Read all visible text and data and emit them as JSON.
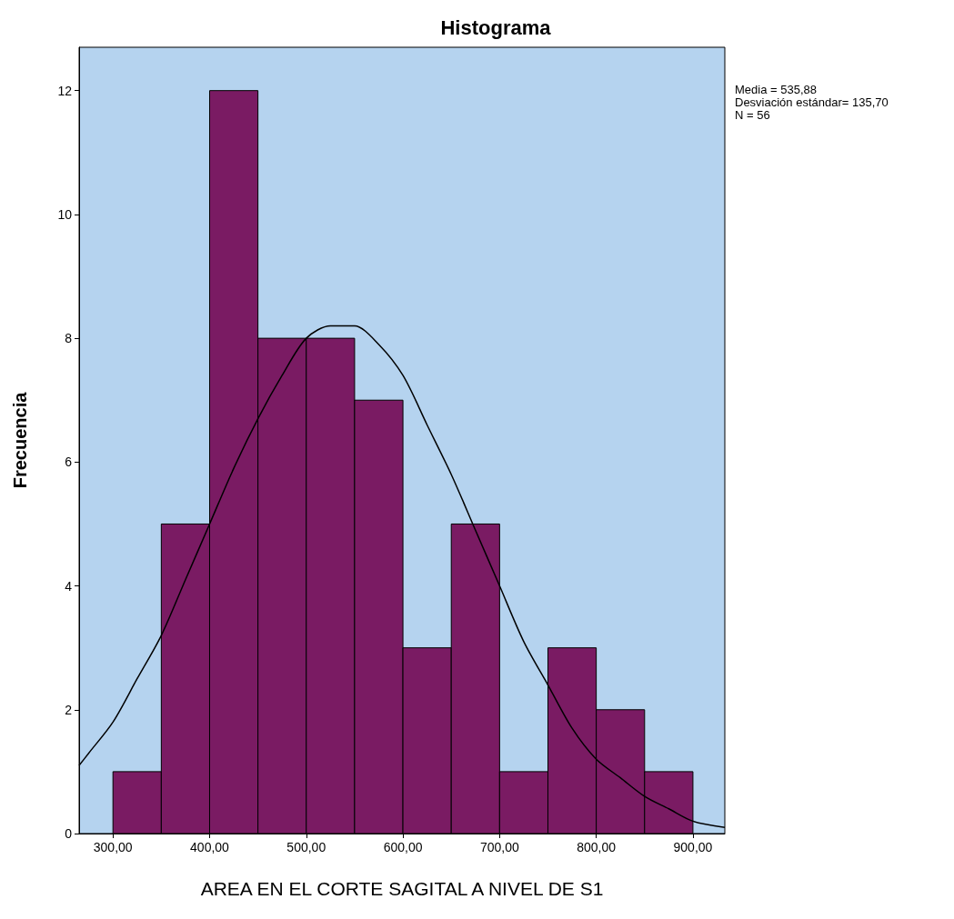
{
  "chart_data": {
    "type": "histogram",
    "title": "Histograma",
    "xlabel": "AREA EN EL CORTE SAGITAL A NIVEL DE S1",
    "ylabel": "Frecuencia",
    "bins": [
      300,
      350,
      400,
      450,
      500,
      550,
      600,
      650,
      700,
      750,
      800,
      850,
      900
    ],
    "series": [
      {
        "color": "#7a1b63",
        "values": [
          1,
          5,
          12,
          8,
          8,
          7,
          3,
          5,
          1,
          3,
          2,
          1
        ]
      },
      {
        "type": "line",
        "color": "#000000",
        "x": [
          265,
          275,
          300,
          325,
          350,
          375,
          400,
          425,
          450,
          475,
          500,
          525,
          536,
          550,
          575,
          600,
          625,
          650,
          675,
          700,
          725,
          750,
          775,
          800,
          825,
          850,
          875,
          900,
          933
        ],
        "values": [
          1.1,
          1.3,
          1.8,
          2.5,
          3.2,
          4.1,
          5.0,
          5.9,
          6.7,
          7.4,
          8.0,
          8.2,
          8.2,
          8.2,
          7.9,
          7.4,
          6.6,
          5.8,
          4.9,
          4.0,
          3.1,
          2.4,
          1.7,
          1.2,
          0.9,
          0.6,
          0.4,
          0.2,
          0.1
        ]
      }
    ],
    "xlim": [
      265,
      933
    ],
    "ylim": [
      0,
      12.7
    ],
    "xticks": [
      {
        "value": 300,
        "label": "300,00"
      },
      {
        "value": 400,
        "label": "400,00"
      },
      {
        "value": 500,
        "label": "500,00"
      },
      {
        "value": 600,
        "label": "600,00"
      },
      {
        "value": 700,
        "label": "700,00"
      },
      {
        "value": 800,
        "label": "800,00"
      },
      {
        "value": 900,
        "label": "900,00"
      }
    ],
    "yticks": [
      0,
      2,
      4,
      6,
      8,
      10,
      12
    ],
    "marker": "none",
    "grid": false,
    "annotations": [
      "Media = 535,88",
      "Desviación estándar= 135,70",
      "N = 56"
    ]
  }
}
